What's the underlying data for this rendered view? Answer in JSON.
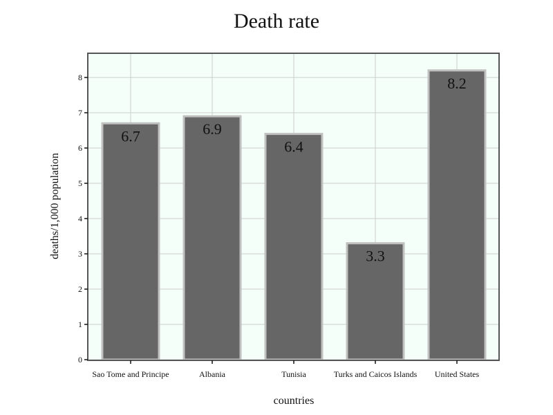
{
  "chart_data": {
    "type": "bar",
    "title": "Death rate",
    "xlabel": "countries",
    "ylabel": "deaths/1,000 population",
    "categories": [
      "Sao Tome and Principe",
      "Albania",
      "Tunisia",
      "Turks and Caicos Islands",
      "United States"
    ],
    "values": [
      6.7,
      6.9,
      6.4,
      3.3,
      8.2
    ],
    "data_labels": [
      "6.7",
      "6.9",
      "6.4",
      "3.3",
      "8.2"
    ],
    "yticks": [
      0,
      1,
      2,
      3,
      4,
      5,
      6,
      7,
      8
    ],
    "ylim": [
      0,
      8.6
    ],
    "grid": true,
    "colors": {
      "bar_fill": "#666666",
      "bar_stroke": "#c0c0c0",
      "plot_background": "#f5fff9",
      "grid": "#cccccc",
      "frame": "#555555"
    }
  }
}
